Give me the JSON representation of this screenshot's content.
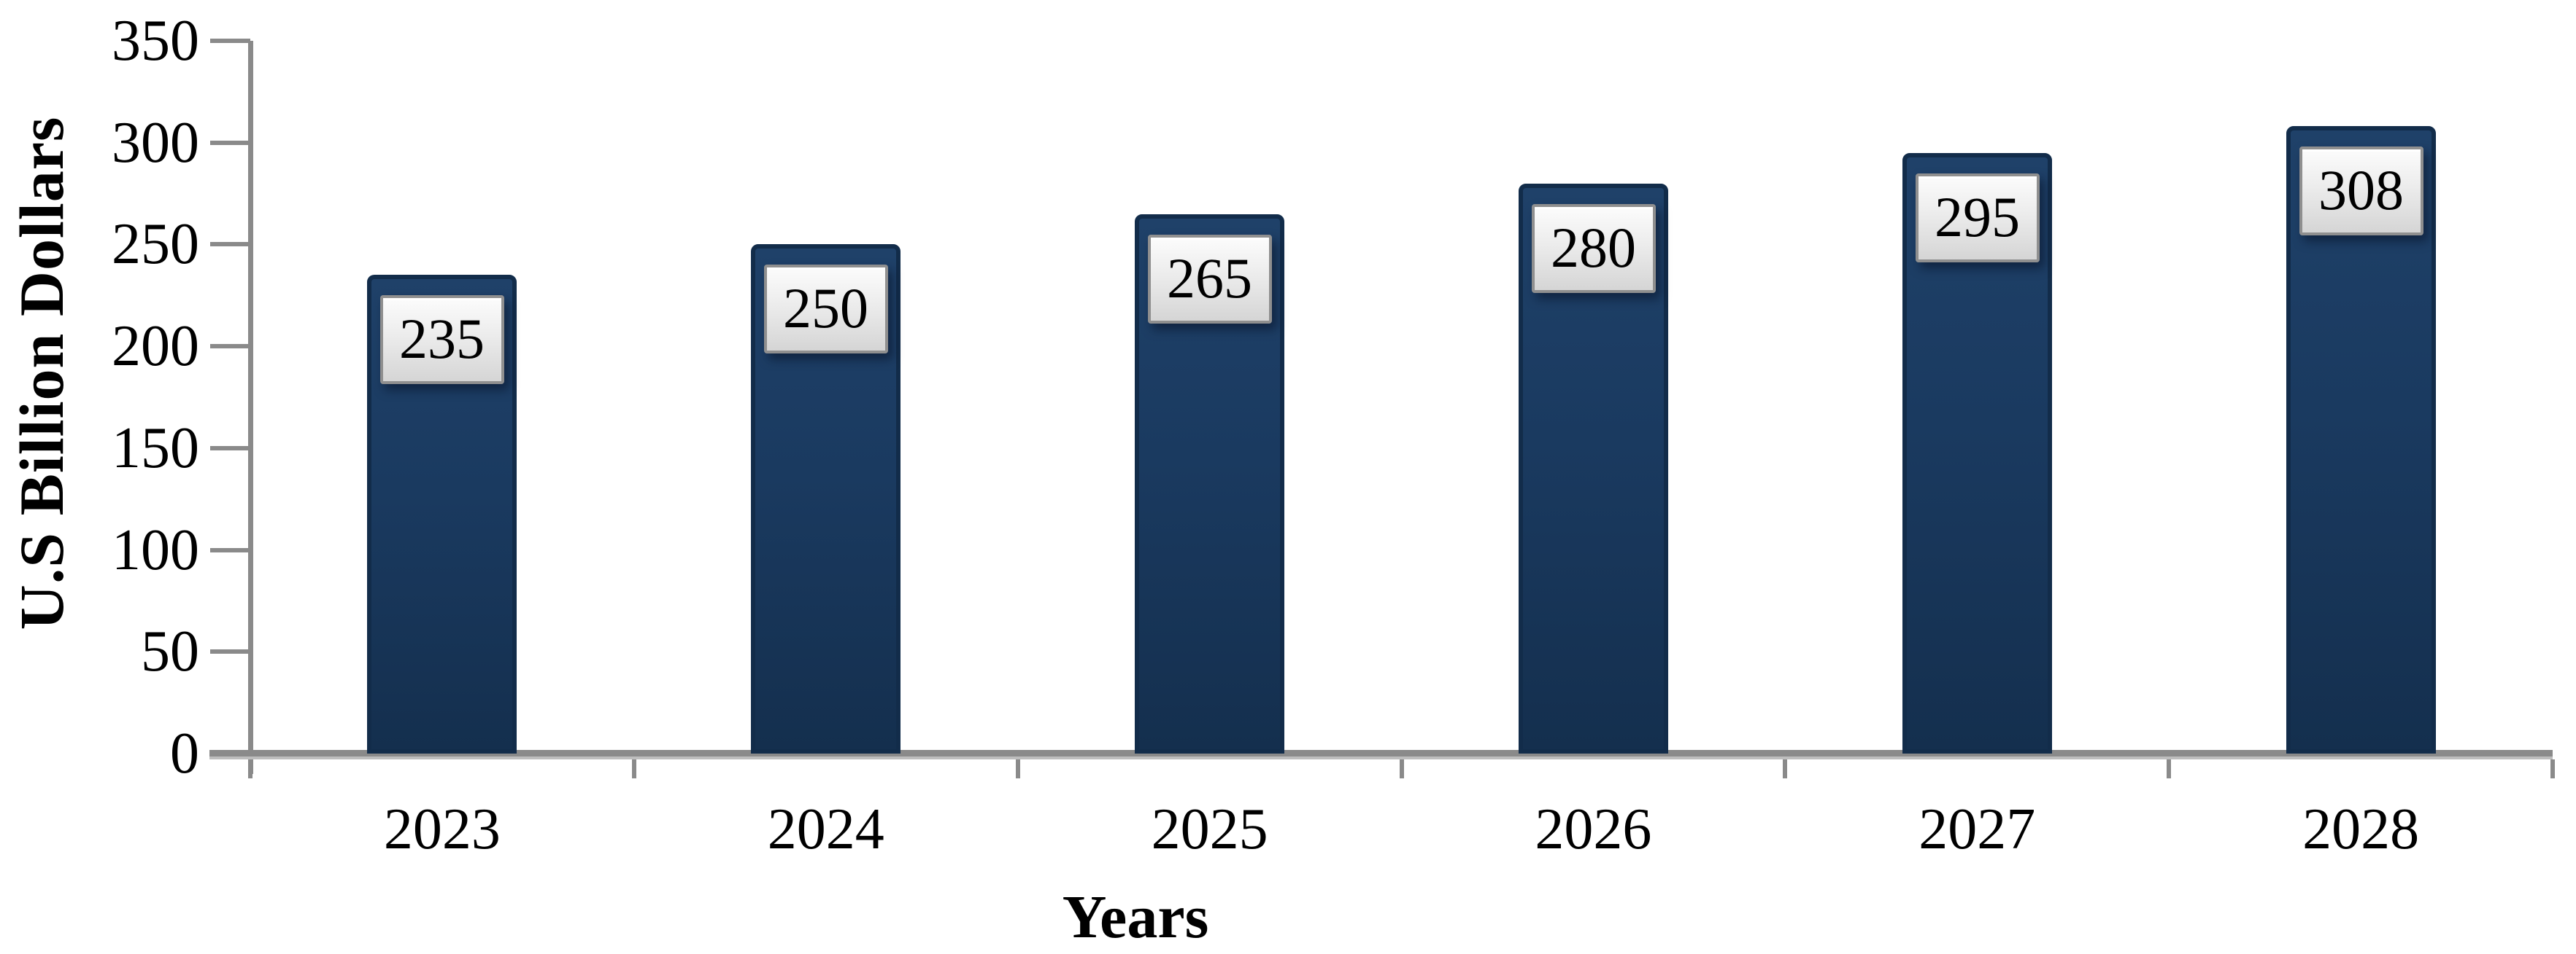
{
  "chart_data": {
    "type": "bar",
    "title": "",
    "xlabel": "Years",
    "ylabel": "U.S Billion Dollars",
    "categories": [
      "2023",
      "2024",
      "2025",
      "2026",
      "2027",
      "2028"
    ],
    "values": [
      235,
      250,
      265,
      280,
      295,
      308
    ],
    "ylim": [
      0,
      350
    ],
    "yticks": [
      0,
      50,
      100,
      150,
      200,
      250,
      300,
      350
    ],
    "grid": false,
    "legend_position": "none",
    "data_labels_shown": true,
    "colors": {
      "background": "#ffffff",
      "bar_fill_light": "#1f4169",
      "bar_fill": "#1a3a60",
      "bar_fill_dark": "#142f4e",
      "bar_border": "#122c4a",
      "axis_line": "#8a8a8a",
      "axis_line_shadow": "#bdbdbd",
      "tick_text": "#000000",
      "label_box_top": "#fcfcfc",
      "label_box_mid": "#ececec",
      "label_box_bottom": "#d5d5d5",
      "label_box_border": "#8f8f8f",
      "label_text": "#000000"
    }
  }
}
